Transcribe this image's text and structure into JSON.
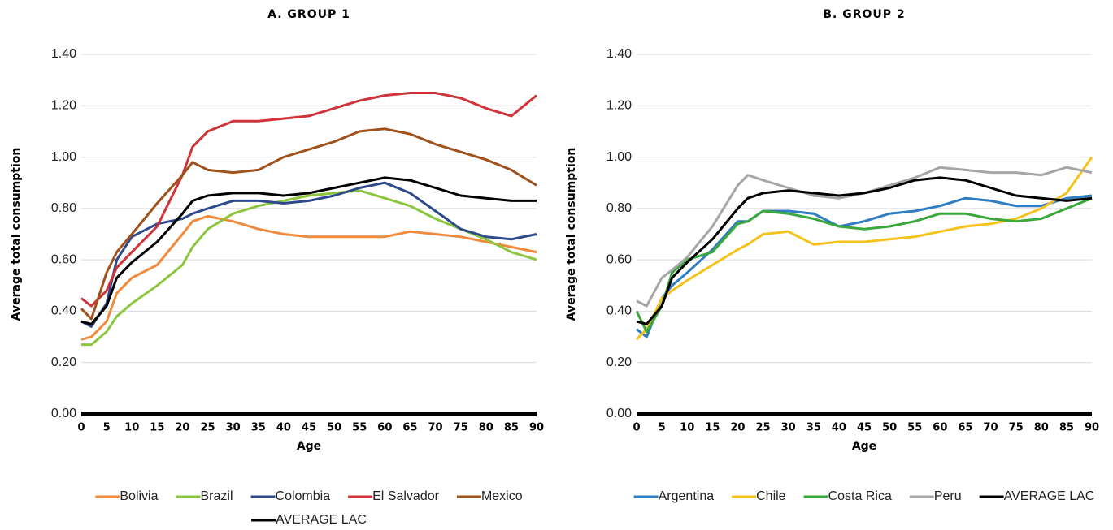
{
  "chart_data": [
    {
      "type": "line",
      "title": "A. GROUP 1",
      "x_label": "Age",
      "y_label": "Average total consumption",
      "x": [
        0,
        2,
        5,
        7,
        10,
        15,
        20,
        22,
        25,
        30,
        35,
        40,
        45,
        50,
        55,
        60,
        65,
        70,
        75,
        80,
        85,
        90
      ],
      "xlim": [
        0,
        90
      ],
      "xticks": [
        0,
        5,
        10,
        15,
        20,
        25,
        30,
        35,
        40,
        45,
        50,
        55,
        60,
        65,
        70,
        75,
        80,
        85,
        90
      ],
      "ylim": [
        0,
        1.4
      ],
      "yticks": [
        {
          "value": 0,
          "label": "0.00"
        },
        {
          "value": 0.2,
          "label": "0.20"
        },
        {
          "value": 0.4,
          "label": "0.40"
        },
        {
          "value": 0.6,
          "label": "0.60"
        },
        {
          "value": 0.8,
          "label": "0.80"
        },
        {
          "value": 1,
          "label": "1.00"
        },
        {
          "value": 1.2,
          "label": "1.20"
        },
        {
          "value": 1.4,
          "label": "1.40"
        }
      ],
      "grid": true,
      "series": [
        {
          "name": "Bolivia",
          "color": "#f08a3c",
          "values": [
            0.29,
            0.3,
            0.36,
            0.47,
            0.53,
            0.58,
            0.7,
            0.75,
            0.77,
            0.75,
            0.72,
            0.7,
            0.69,
            0.69,
            0.69,
            0.69,
            0.71,
            0.7,
            0.69,
            0.67,
            0.65,
            0.63
          ]
        },
        {
          "name": "Brazil",
          "color": "#8cc63f",
          "values": [
            0.27,
            0.27,
            0.32,
            0.38,
            0.43,
            0.5,
            0.58,
            0.65,
            0.72,
            0.78,
            0.81,
            0.83,
            0.85,
            0.86,
            0.87,
            0.84,
            0.81,
            0.76,
            0.72,
            0.68,
            0.63,
            0.6
          ]
        },
        {
          "name": "Colombia",
          "color": "#2e4a8c",
          "values": [
            0.36,
            0.34,
            0.43,
            0.6,
            0.69,
            0.74,
            0.76,
            0.78,
            0.8,
            0.83,
            0.83,
            0.82,
            0.83,
            0.85,
            0.88,
            0.9,
            0.86,
            0.79,
            0.72,
            0.69,
            0.68,
            0.7
          ]
        },
        {
          "name": "El Salvador",
          "color": "#d03338",
          "values": [
            0.45,
            0.42,
            0.48,
            0.57,
            0.63,
            0.73,
            0.93,
            1.04,
            1.1,
            1.14,
            1.14,
            1.15,
            1.16,
            1.19,
            1.22,
            1.24,
            1.25,
            1.25,
            1.23,
            1.19,
            1.16,
            1.24
          ]
        },
        {
          "name": "Mexico",
          "color": "#a0521c",
          "values": [
            0.41,
            0.37,
            0.55,
            0.63,
            0.7,
            0.82,
            0.93,
            0.98,
            0.95,
            0.94,
            0.95,
            1.0,
            1.03,
            1.06,
            1.1,
            1.11,
            1.09,
            1.05,
            1.02,
            0.99,
            0.95,
            0.89
          ]
        },
        {
          "name": "AVERAGE LAC",
          "color": "#000000",
          "values": [
            0.36,
            0.35,
            0.42,
            0.53,
            0.59,
            0.67,
            0.78,
            0.83,
            0.85,
            0.86,
            0.86,
            0.85,
            0.86,
            0.88,
            0.9,
            0.92,
            0.91,
            0.88,
            0.85,
            0.84,
            0.83,
            0.83
          ]
        }
      ]
    },
    {
      "type": "line",
      "title": "B. GROUP 2",
      "x_label": "Age",
      "y_label": "Average total consumption",
      "x": [
        0,
        2,
        5,
        7,
        10,
        15,
        20,
        22,
        25,
        30,
        35,
        40,
        45,
        50,
        55,
        60,
        65,
        70,
        75,
        80,
        85,
        90
      ],
      "xlim": [
        0,
        90
      ],
      "xticks": [
        0,
        5,
        10,
        15,
        20,
        25,
        30,
        35,
        40,
        45,
        50,
        55,
        60,
        65,
        70,
        75,
        80,
        85,
        90
      ],
      "ylim": [
        0,
        1.4
      ],
      "yticks": [
        {
          "value": 0,
          "label": "0.00"
        },
        {
          "value": 0.2,
          "label": "0.20"
        },
        {
          "value": 0.4,
          "label": "0.40"
        },
        {
          "value": 0.6,
          "label": "0.60"
        },
        {
          "value": 0.8,
          "label": "0.80"
        },
        {
          "value": 1,
          "label": "1.00"
        },
        {
          "value": 1.2,
          "label": "1.20"
        },
        {
          "value": 1.4,
          "label": "1.40"
        }
      ],
      "grid": true,
      "series": [
        {
          "name": "Argentina",
          "color": "#2f7dc2",
          "values": [
            0.33,
            0.3,
            0.45,
            0.5,
            0.55,
            0.64,
            0.75,
            0.75,
            0.79,
            0.79,
            0.78,
            0.73,
            0.75,
            0.78,
            0.79,
            0.81,
            0.84,
            0.83,
            0.81,
            0.81,
            0.84,
            0.85
          ]
        },
        {
          "name": "Chile",
          "color": "#f5c21b",
          "values": [
            0.29,
            0.33,
            0.45,
            0.48,
            0.52,
            0.58,
            0.64,
            0.66,
            0.7,
            0.71,
            0.66,
            0.67,
            0.67,
            0.68,
            0.69,
            0.71,
            0.73,
            0.74,
            0.76,
            0.8,
            0.86,
            1.0
          ]
        },
        {
          "name": "Costa Rica",
          "color": "#3aa83c",
          "values": [
            0.4,
            0.32,
            0.42,
            0.55,
            0.6,
            0.63,
            0.74,
            0.75,
            0.79,
            0.78,
            0.76,
            0.73,
            0.72,
            0.73,
            0.75,
            0.78,
            0.78,
            0.76,
            0.75,
            0.76,
            0.8,
            0.84
          ]
        },
        {
          "name": "Peru",
          "color": "#a6a6a6",
          "values": [
            0.44,
            0.42,
            0.53,
            0.56,
            0.61,
            0.73,
            0.89,
            0.93,
            0.91,
            0.88,
            0.85,
            0.84,
            0.86,
            0.89,
            0.92,
            0.96,
            0.95,
            0.94,
            0.94,
            0.93,
            0.96,
            0.94
          ]
        },
        {
          "name": "AVERAGE LAC",
          "color": "#000000",
          "values": [
            0.36,
            0.35,
            0.42,
            0.53,
            0.59,
            0.68,
            0.8,
            0.84,
            0.86,
            0.87,
            0.86,
            0.85,
            0.86,
            0.88,
            0.91,
            0.92,
            0.91,
            0.88,
            0.85,
            0.84,
            0.83,
            0.84
          ]
        }
      ]
    }
  ]
}
